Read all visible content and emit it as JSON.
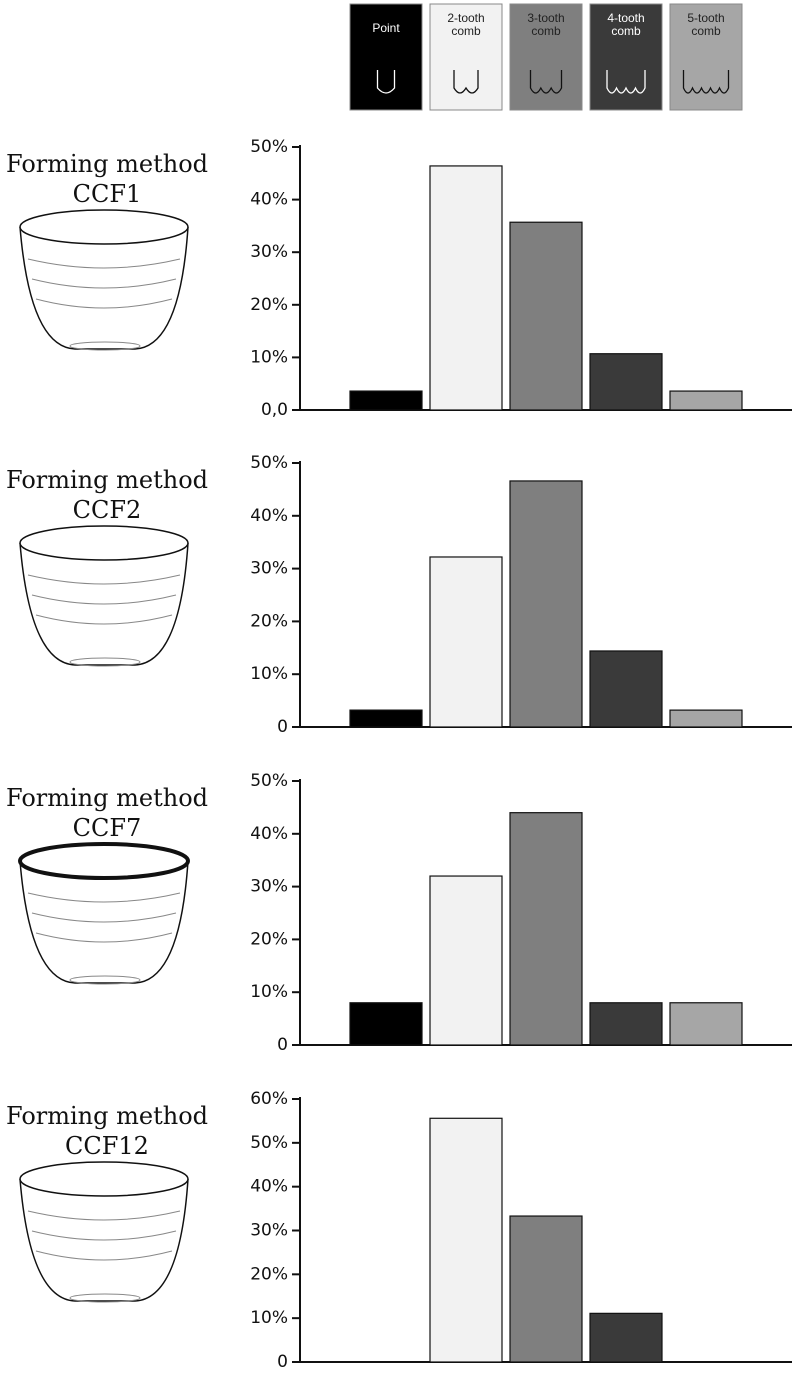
{
  "legend": [
    {
      "name": "Point",
      "color": "#000000"
    },
    {
      "name": "2-tooth comb",
      "color": "#f2f2f2"
    },
    {
      "name": "3-tooth comb",
      "color": "#7f7f7f"
    },
    {
      "name": "4-tooth comb",
      "color": "#3a3a3a"
    },
    {
      "name": "5-tooth comb",
      "color": "#a6a6a6"
    }
  ],
  "chart_data": [
    {
      "type": "bar",
      "title": "Forming method CCF1",
      "values": [
        3.6,
        46.4,
        35.7,
        10.7,
        3.6
      ],
      "ylim": [
        0,
        50
      ],
      "yticks": [
        {
          "value": 0,
          "label": "0,0"
        },
        {
          "value": 10,
          "label": "10%"
        },
        {
          "value": 20,
          "label": "20%"
        },
        {
          "value": 30,
          "label": "30%"
        },
        {
          "value": 40,
          "label": "40%"
        },
        {
          "value": 50,
          "label": "50%"
        }
      ]
    },
    {
      "type": "bar",
      "title": "Forming method CCF2",
      "values": [
        3.2,
        32.2,
        46.6,
        14.4,
        3.2
      ],
      "ylim": [
        0,
        50
      ],
      "yticks": [
        0,
        {
          "value": 10,
          "label": "10%"
        },
        {
          "value": 20,
          "label": "20%"
        },
        {
          "value": 30,
          "label": "30%"
        },
        {
          "value": 40,
          "label": "40%"
        },
        {
          "value": 50,
          "label": "50%"
        }
      ]
    },
    {
      "type": "bar",
      "title": "Forming method CCF7",
      "values": [
        8,
        32,
        44,
        8,
        8
      ],
      "ylim": [
        0,
        50
      ],
      "yticks": [
        0,
        {
          "value": 10,
          "label": "10%"
        },
        {
          "value": 20,
          "label": "20%"
        },
        {
          "value": 30,
          "label": "30%"
        },
        {
          "value": 40,
          "label": "40%"
        },
        {
          "value": 50,
          "label": "50%"
        }
      ]
    },
    {
      "type": "bar",
      "title": "Forming method CCF12",
      "values": [
        0,
        55.6,
        33.3,
        11.1,
        0
      ],
      "ylim": [
        0,
        60
      ],
      "yticks": [
        0,
        {
          "value": 10,
          "label": "10%"
        },
        {
          "value": 20,
          "label": "20%"
        },
        {
          "value": 30,
          "label": "30%"
        },
        {
          "value": 40,
          "label": "40%"
        },
        {
          "value": 50,
          "label": "50%"
        },
        {
          "value": 60,
          "label": "60%"
        }
      ]
    }
  ]
}
